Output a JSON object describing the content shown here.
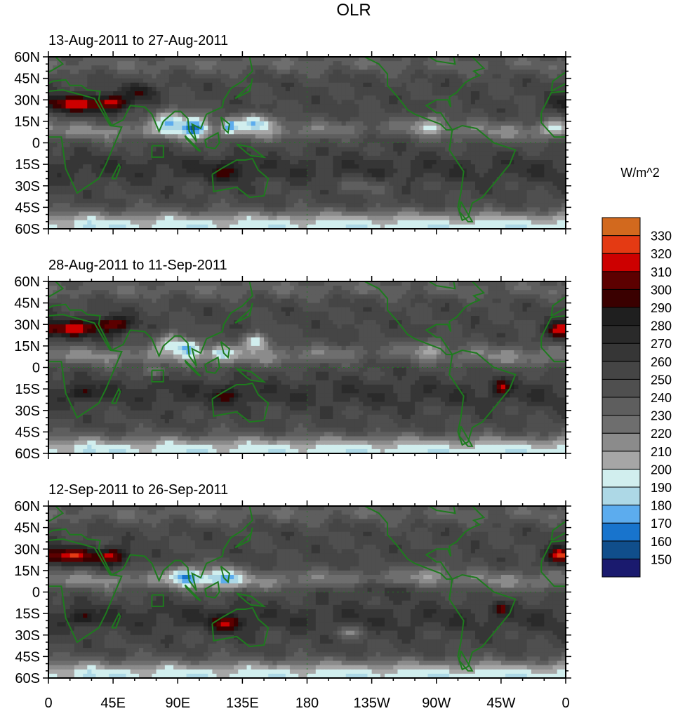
{
  "chart_data": {
    "type": "heatmap",
    "title": "OLR",
    "units_label": "W/m^2",
    "x_ticks": [
      "0",
      "45E",
      "90E",
      "135E",
      "180",
      "135W",
      "90W",
      "45W",
      "0"
    ],
    "x_tick_values": [
      0,
      45,
      90,
      135,
      180,
      225,
      270,
      315,
      360
    ],
    "y_ticks": [
      "60N",
      "45N",
      "30N",
      "15N",
      "0",
      "15S",
      "30S",
      "45S",
      "60S"
    ],
    "y_tick_values": [
      60,
      45,
      30,
      15,
      0,
      -15,
      -30,
      -45,
      -60
    ],
    "xlim": [
      0,
      360
    ],
    "ylim": [
      -60,
      60
    ],
    "colorbar": {
      "levels": [
        150,
        160,
        170,
        180,
        190,
        200,
        210,
        220,
        230,
        240,
        250,
        260,
        270,
        280,
        290,
        300,
        310,
        320,
        330
      ],
      "colors": [
        "#1a1a6e",
        "#104e8b",
        "#1874cd",
        "#5cacee",
        "#add8e6",
        "#d1eeee",
        "#a6a6a6",
        "#8b8b8b",
        "#6e6e6e",
        "#5e5e5e",
        "#4f4f4f",
        "#454545",
        "#363636",
        "#2a2a2a",
        "#1f1f1f",
        "#3a0000",
        "#5c0000",
        "#cd0000",
        "#e43a13",
        "#d2691e"
      ]
    },
    "coastline_color": "#1e7b1e",
    "panels": [
      {
        "subtitle": "13-Aug-2011 to 27-Aug-2011",
        "features": [
          {
            "lon": 15,
            "lat": 27,
            "wlon": 22,
            "wlat": 6,
            "amp": 62
          },
          {
            "lon": 45,
            "lat": 28,
            "wlon": 14,
            "wlat": 6,
            "amp": 55
          },
          {
            "lon": 65,
            "lat": 36,
            "wlon": 10,
            "wlat": 5,
            "amp": 38
          },
          {
            "lon": 85,
            "lat": 16,
            "wlon": 12,
            "wlat": 8,
            "amp": -58
          },
          {
            "lon": 102,
            "lat": 12,
            "wlon": 9,
            "wlat": 8,
            "amp": -62
          },
          {
            "lon": 126,
            "lat": 12,
            "wlon": 5,
            "wlat": 5,
            "amp": -50
          },
          {
            "lon": 145,
            "lat": 15,
            "wlon": 12,
            "wlat": 6,
            "amp": -62
          },
          {
            "lon": 125,
            "lat": -20,
            "wlon": 12,
            "wlat": 7,
            "amp": 30
          },
          {
            "lon": 265,
            "lat": 14,
            "wlon": 12,
            "wlat": 7,
            "amp": -35
          },
          {
            "lon": 352,
            "lat": 11,
            "wlon": 10,
            "wlat": 5,
            "amp": -30
          },
          {
            "lon": 230,
            "lat": 5,
            "wlon": 40,
            "wlat": 6,
            "amp": 18
          },
          {
            "lon": 220,
            "lat": -30,
            "wlon": 20,
            "wlat": 5,
            "amp": -20
          }
        ]
      },
      {
        "subtitle": "28-Aug-2011 to 11-Sep-2011",
        "features": [
          {
            "lon": 15,
            "lat": 27,
            "wlon": 20,
            "wlat": 6,
            "amp": 60
          },
          {
            "lon": 45,
            "lat": 30,
            "wlon": 14,
            "wlat": 6,
            "amp": 55
          },
          {
            "lon": 25,
            "lat": -18,
            "wlon": 8,
            "wlat": 5,
            "amp": 35
          },
          {
            "lon": 85,
            "lat": 18,
            "wlon": 10,
            "wlat": 7,
            "amp": -50
          },
          {
            "lon": 98,
            "lat": 14,
            "wlon": 8,
            "wlat": 6,
            "amp": -62
          },
          {
            "lon": 75,
            "lat": -3,
            "wlon": 8,
            "wlat": 3,
            "amp": -40
          },
          {
            "lon": 145,
            "lat": 18,
            "wlon": 9,
            "wlat": 6,
            "amp": -65
          },
          {
            "lon": 120,
            "lat": 10,
            "wlon": 8,
            "wlat": 6,
            "amp": -45
          },
          {
            "lon": 125,
            "lat": -20,
            "wlon": 10,
            "wlat": 6,
            "amp": 30
          },
          {
            "lon": 315,
            "lat": -14,
            "wlon": 6,
            "wlat": 5,
            "amp": 45
          },
          {
            "lon": 355,
            "lat": 25,
            "wlon": 8,
            "wlat": 6,
            "amp": 45
          },
          {
            "lon": 230,
            "lat": 5,
            "wlon": 40,
            "wlat": 6,
            "amp": 18
          },
          {
            "lon": 265,
            "lat": 15,
            "wlon": 10,
            "wlat": 6,
            "amp": -30
          }
        ]
      },
      {
        "subtitle": "12-Sep-2011 to 26-Sep-2011",
        "features": [
          {
            "lon": 15,
            "lat": 25,
            "wlon": 20,
            "wlat": 6,
            "amp": 62
          },
          {
            "lon": 45,
            "lat": 25,
            "wlon": 12,
            "wlat": 6,
            "amp": 55
          },
          {
            "lon": 25,
            "lat": -18,
            "wlon": 8,
            "wlat": 5,
            "amp": 35
          },
          {
            "lon": 95,
            "lat": 12,
            "wlon": 10,
            "wlat": 7,
            "amp": -60
          },
          {
            "lon": 120,
            "lat": 10,
            "wlon": 15,
            "wlat": 8,
            "amp": -50
          },
          {
            "lon": 125,
            "lat": -22,
            "wlon": 12,
            "wlat": 6,
            "amp": 45
          },
          {
            "lon": 315,
            "lat": -12,
            "wlon": 5,
            "wlat": 4,
            "amp": 40
          },
          {
            "lon": 355,
            "lat": 25,
            "wlon": 8,
            "wlat": 6,
            "amp": 50
          },
          {
            "lon": 230,
            "lat": 3,
            "wlon": 40,
            "wlat": 6,
            "amp": 22
          },
          {
            "lon": 265,
            "lat": 15,
            "wlon": 12,
            "wlat": 6,
            "amp": -25
          },
          {
            "lon": 210,
            "lat": -28,
            "wlon": 10,
            "wlat": 4,
            "amp": -30
          }
        ]
      }
    ]
  }
}
